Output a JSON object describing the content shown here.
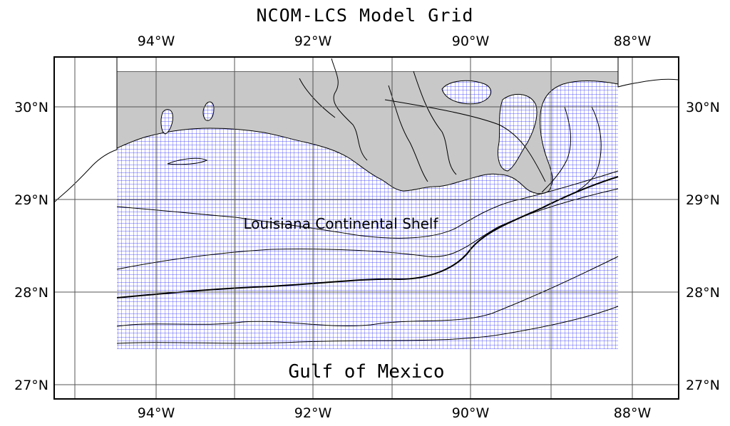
{
  "title": "NCOM-LCS Model Grid",
  "region_label": "Louisiana Continental Shelf",
  "water_label": "Gulf of Mexico",
  "longitude_ticks": [
    "94°W",
    "92°W",
    "90°W",
    "88°W"
  ],
  "latitude_ticks": [
    "30°N",
    "29°N",
    "28°N",
    "27°N"
  ],
  "colors": {
    "grid_lines": "#2a2aff",
    "land": "#c8c8c8",
    "graticule": "#555555",
    "contours": "#000000",
    "frame": "#000000"
  },
  "map_extent": {
    "lon_min": -95.25,
    "lon_max": -87.55,
    "lat_min": 26.9,
    "lat_max": 30.55
  },
  "model_grid_extent": {
    "lon_min": -94.55,
    "lon_max": -88.25,
    "lat_min": 27.4,
    "lat_max": 30.4
  }
}
